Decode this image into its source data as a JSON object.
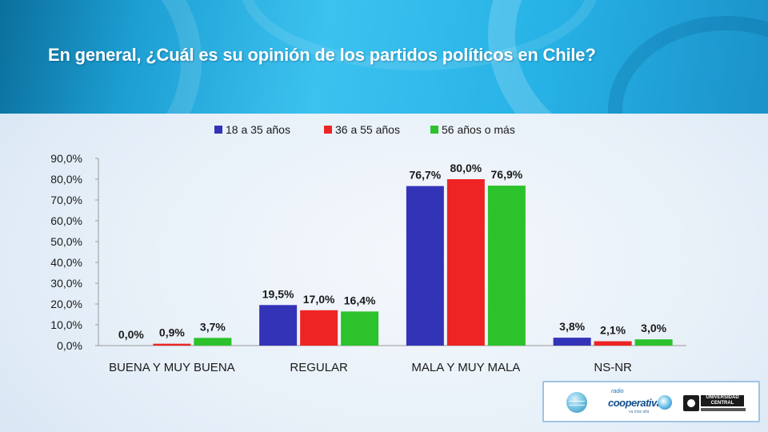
{
  "slide": {
    "title": "En general, ¿Cuál es su opinión de los partidos políticos en Chile?"
  },
  "footer": {
    "logos": [
      {
        "icon": "globe-logo-icon"
      },
      {
        "icon": "cooperativa-logo-icon",
        "text": "cooperativa",
        "small": "radio",
        "tagline": "va más allá"
      },
      {
        "icon": "universidad-central-logo-icon",
        "text": "UNIVERSIDAD CENTRAL"
      }
    ]
  },
  "chart_data": {
    "type": "bar",
    "categories": [
      "BUENA Y MUY BUENA",
      "REGULAR",
      "MALA Y MUY MALA",
      "NS-NR"
    ],
    "series": [
      {
        "name": "18 a 35 años",
        "color": "#3333b8",
        "values": [
          0.0,
          19.5,
          76.7,
          3.8
        ],
        "labels": [
          "0,0%",
          "19,5%",
          "76,7%",
          "3,8%"
        ]
      },
      {
        "name": "36 a 55 años",
        "color": "#ee2424",
        "values": [
          0.9,
          17.0,
          80.0,
          2.1
        ],
        "labels": [
          "0,9%",
          "17,0%",
          "80,0%",
          "2,1%"
        ]
      },
      {
        "name": "56 años o más",
        "color": "#2cc22c",
        "values": [
          3.7,
          16.4,
          76.9,
          3.0
        ],
        "labels": [
          "3,7%",
          "16,4%",
          "76,9%",
          "3,0%"
        ]
      }
    ],
    "ylim": [
      0,
      90
    ],
    "yticks": [
      "0,0%",
      "10,0%",
      "20,0%",
      "30,0%",
      "40,0%",
      "50,0%",
      "60,0%",
      "70,0%",
      "80,0%",
      "90,0%"
    ],
    "ytick_values": [
      0,
      10,
      20,
      30,
      40,
      50,
      60,
      70,
      80,
      90
    ],
    "legend": "top-center",
    "grid": false
  }
}
